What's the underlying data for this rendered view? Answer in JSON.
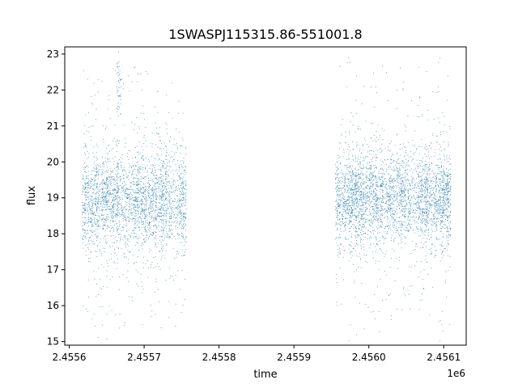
{
  "chart_data": {
    "type": "scatter",
    "title": "1SWASPJ115315.86-551001.8",
    "xlabel": "time",
    "ylabel": "flux",
    "x_offset_label": "1e6",
    "xlim": [
      2455594.0,
      2456130.0
    ],
    "ylim": [
      14.9,
      23.2
    ],
    "x_ticks": [
      2455600,
      2455700,
      2455800,
      2455900,
      2456000,
      2456100
    ],
    "x_tick_labels": [
      "2.4556",
      "2.4557",
      "2.4558",
      "2.4559",
      "2.4560",
      "2.4561"
    ],
    "y_ticks": [
      15,
      16,
      17,
      18,
      19,
      20,
      21,
      22,
      23
    ],
    "y_tick_labels": [
      "15",
      "16",
      "17",
      "18",
      "19",
      "20",
      "21",
      "22",
      "23"
    ],
    "grid": false,
    "marker_color": "#1f77b4",
    "segments": [
      {
        "x_start": 2455617,
        "x_end": 2455755,
        "y_center": 18.9,
        "y_spread": 0.65
      },
      {
        "x_start": 2455955,
        "x_end": 2456108,
        "y_center": 19.0,
        "y_spread": 0.6
      }
    ],
    "series": [
      {
        "x": [
          2455620,
          2455640,
          2455660,
          2455665,
          2455680,
          2455700,
          2455720,
          2455740,
          2455752
        ],
        "y": [
          18.7,
          18.9,
          19.5,
          22.6,
          18.9,
          19.2,
          19.0,
          18.9,
          19.4
        ]
      },
      {
        "x": [
          2455958,
          2455980,
          2456000,
          2456020,
          2456040,
          2456060,
          2456080,
          2456100,
          2456106
        ],
        "y": [
          19.1,
          18.9,
          18.8,
          19.0,
          19.2,
          19.0,
          18.9,
          19.3,
          19.2
        ]
      }
    ]
  }
}
